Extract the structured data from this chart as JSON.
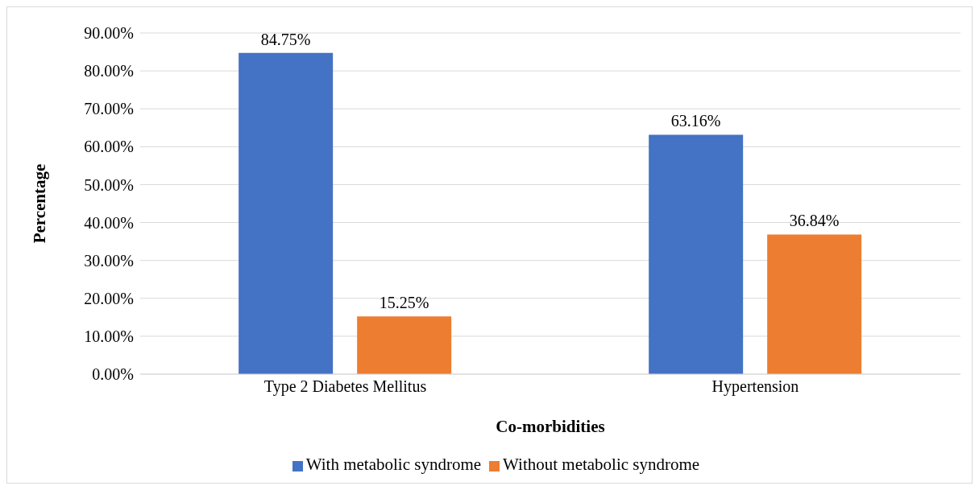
{
  "chart_data": {
    "type": "bar",
    "xlabel": "Co-morbidities",
    "ylabel": "Percentage",
    "categories": [
      "Type 2 Diabetes Mellitus",
      "Hypertension"
    ],
    "series": [
      {
        "name": "With metabolic syndrome",
        "color": "#4472c4",
        "values": [
          84.75,
          63.16
        ],
        "value_labels": [
          "84.75%",
          "63.16%"
        ]
      },
      {
        "name": "Without metabolic syndrome",
        "color": "#ed7d31",
        "values": [
          15.25,
          36.84
        ],
        "value_labels": [
          "15.25%",
          "36.84%"
        ]
      }
    ],
    "ylim": [
      0,
      90
    ],
    "yticks": [
      {
        "value": 0,
        "label": "0.00%"
      },
      {
        "value": 10,
        "label": "10.00%"
      },
      {
        "value": 20,
        "label": "20.00%"
      },
      {
        "value": 30,
        "label": "30.00%"
      },
      {
        "value": 40,
        "label": "40.00%"
      },
      {
        "value": 50,
        "label": "50.00%"
      },
      {
        "value": 60,
        "label": "60.00%"
      },
      {
        "value": 70,
        "label": "70.00%"
      },
      {
        "value": 80,
        "label": "80.00%"
      },
      {
        "value": 90,
        "label": "90.00%"
      }
    ],
    "grid": "y",
    "legend": "bottom"
  }
}
